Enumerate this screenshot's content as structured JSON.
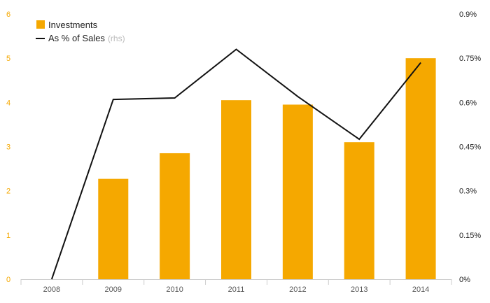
{
  "chart_data": {
    "type": "bar",
    "categories": [
      "2008",
      "2009",
      "2010",
      "2011",
      "2012",
      "2013",
      "2014"
    ],
    "series": [
      {
        "name": "Investments",
        "type": "bar",
        "axis": "left",
        "color": "#f5a800",
        "values": [
          0,
          2.27,
          2.85,
          4.05,
          3.95,
          3.1,
          5.0
        ]
      },
      {
        "name": "As % of Sales",
        "name_suffix": "(rhs)",
        "type": "line",
        "axis": "right",
        "color": "#111111",
        "values": [
          0,
          0.61,
          0.615,
          0.78,
          0.62,
          0.475,
          0.735
        ]
      }
    ],
    "ylim_left": [
      0,
      6
    ],
    "ylim_right": [
      0,
      0.9
    ],
    "left_ticks": [
      "0",
      "1",
      "2",
      "3",
      "4",
      "5",
      "6"
    ],
    "right_ticks": [
      "0%",
      "0.15%",
      "0.3%",
      "0.45%",
      "0.6%",
      "0.75%",
      "0.9%"
    ],
    "legend_position": "top-left",
    "grid": false
  }
}
